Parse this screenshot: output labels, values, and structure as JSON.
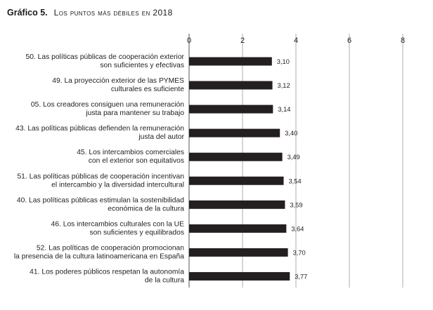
{
  "chart_data": {
    "type": "bar",
    "orientation": "horizontal",
    "title_prefix": "Gráfico 5.",
    "title": "Los puntos más débiles en 2018",
    "xlim": [
      0,
      8
    ],
    "ticks": [
      "0",
      "2",
      "4",
      "6",
      "8"
    ],
    "tick_values": [
      0,
      2,
      4,
      6,
      8
    ],
    "categories": [
      [
        "50. Las políticas públicas de cooperación exterior",
        "son suficientes y efectivas"
      ],
      [
        "49. La proyección exterior de las PYMES",
        "culturales es suficiente"
      ],
      [
        "05. Los creadores consiguen una remuneración",
        "justa para mantener su trabajo"
      ],
      [
        "43. Las políticas públicas defienden la remuneración",
        "justa del autor"
      ],
      [
        "45. Los intercambios comerciales",
        "con el exterior son equitativos"
      ],
      [
        "51. Las políticas públicas de cooperación incentivan",
        "el intercambio y la diversidad intercultural"
      ],
      [
        "40. Las políticas públicas estimulan la sostenibilidad",
        "económica de la cultura"
      ],
      [
        "46. Los intercambios culturales con la UE",
        "son suficientes y equilibrados"
      ],
      [
        "52. Las políticas de cooperación promocionan",
        "la presencia de la cultura latinoamericana en España"
      ],
      [
        "41. Los poderes públicos respetan la autonomía",
        "de la cultura"
      ]
    ],
    "values": [
      3.1,
      3.12,
      3.14,
      3.4,
      3.49,
      3.54,
      3.59,
      3.64,
      3.7,
      3.77
    ],
    "value_labels": [
      "3,10",
      "3,12",
      "3,14",
      "3,40",
      "3,49",
      "3,54",
      "3,59",
      "3,64",
      "3,70",
      "3,77"
    ],
    "bar_color": "#231f20",
    "grid": "vertical",
    "legend": "none"
  }
}
